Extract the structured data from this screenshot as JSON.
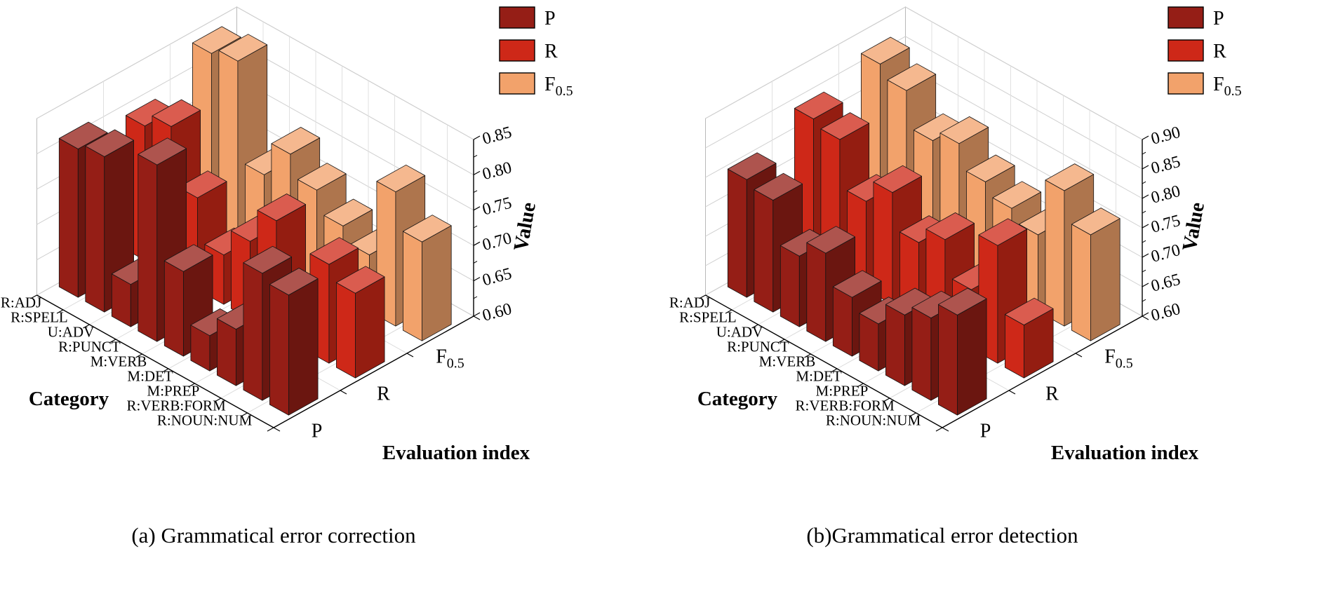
{
  "figure": {
    "background": "#ffffff"
  },
  "chart_data": [
    {
      "type": "bar",
      "subtype": "3d-bar",
      "title": "(a) Grammatical error correction",
      "xlabel": "Evaluation index",
      "ylabel": "Category",
      "zlabel": "Value",
      "categories": [
        "R:ADJ",
        "R:SPELL",
        "U:ADV",
        "R:PUNCT",
        "M:VERB",
        "M:DET",
        "M:PREP",
        "R:VERB:FORM",
        "R:NOUN:NUM"
      ],
      "groups": [
        {
          "base": "P",
          "sub": ""
        },
        {
          "base": "R",
          "sub": ""
        },
        {
          "base": "F",
          "sub": "0.5"
        }
      ],
      "series": [
        {
          "name": "P",
          "color": "#951E16",
          "values": [
            0.81,
            0.82,
            0.66,
            0.85,
            0.72,
            0.65,
            0.68,
            0.78,
            0.77
          ]
        },
        {
          "name": "R",
          "color": "#CE2818",
          "values": [
            0.79,
            0.81,
            0.73,
            0.67,
            0.71,
            0.76,
            0.66,
            0.74,
            0.72
          ]
        },
        {
          "name": "F0.5",
          "color": "#F2A26B",
          "values": [
            0.84,
            0.85,
            0.71,
            0.76,
            0.73,
            0.7,
            0.68,
            0.79,
            0.74
          ]
        }
      ],
      "zlim": [
        0.6,
        0.85
      ],
      "zticks": [
        0.6,
        0.65,
        0.7,
        0.75,
        0.8,
        0.85
      ],
      "legend_position": "top-right",
      "grid": true
    },
    {
      "type": "bar",
      "subtype": "3d-bar",
      "title": "(b)Grammatical error detection",
      "xlabel": "Evaluation index",
      "ylabel": "Category",
      "zlabel": "Value",
      "categories": [
        "R:ADJ",
        "R:SPELL",
        "U:ADV",
        "R:PUNCT",
        "M:VERB",
        "M:DET",
        "M:PREP",
        "R:VERB:FORM",
        "R:NOUN:NUM"
      ],
      "groups": [
        {
          "base": "P",
          "sub": ""
        },
        {
          "base": "R",
          "sub": ""
        },
        {
          "base": "F",
          "sub": "0.5"
        }
      ],
      "series": [
        {
          "name": "P",
          "color": "#951E16",
          "values": [
            0.8,
            0.79,
            0.72,
            0.75,
            0.7,
            0.68,
            0.72,
            0.74,
            0.77
          ]
        },
        {
          "name": "R",
          "color": "#CE2818",
          "values": [
            0.84,
            0.83,
            0.75,
            0.79,
            0.73,
            0.76,
            0.7,
            0.8,
            0.69
          ]
        },
        {
          "name": "F0.5",
          "color": "#F2A26B",
          "values": [
            0.87,
            0.85,
            0.79,
            0.81,
            0.77,
            0.75,
            0.73,
            0.83,
            0.78
          ]
        }
      ],
      "zlim": [
        0.6,
        0.9
      ],
      "zticks": [
        0.6,
        0.65,
        0.7,
        0.75,
        0.8,
        0.85,
        0.9
      ],
      "legend_position": "top-right",
      "grid": true
    }
  ]
}
